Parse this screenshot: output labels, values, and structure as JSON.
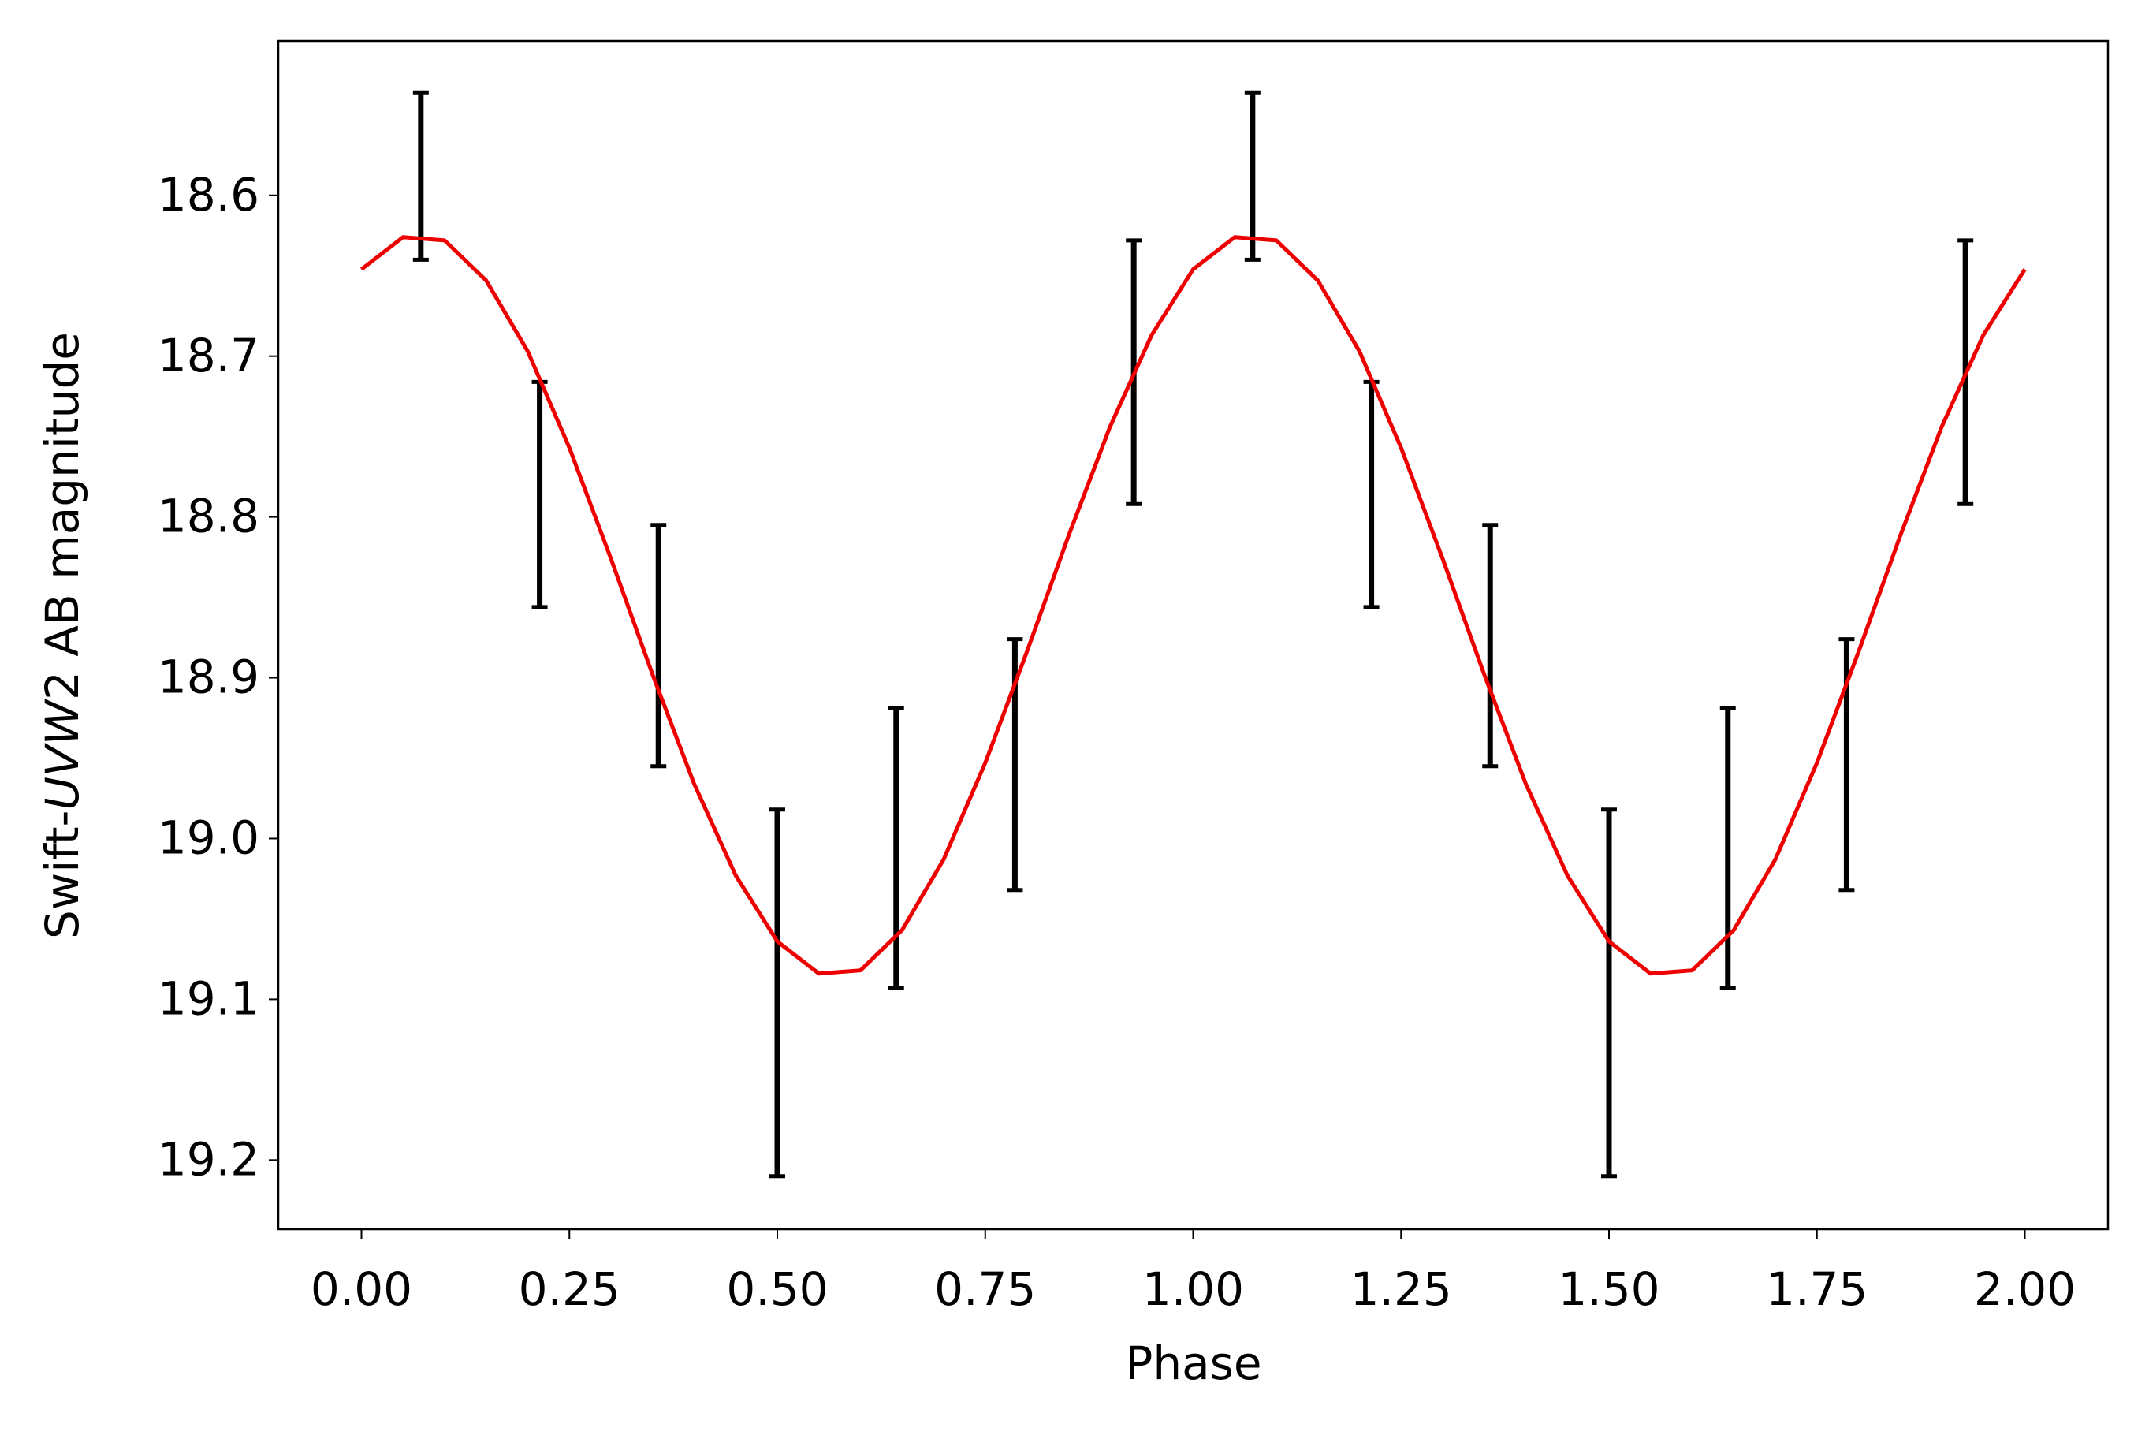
{
  "chart_data": {
    "type": "errorbar-line",
    "xlabel": "Phase",
    "ylabel": [
      "Swift-",
      "UVW",
      "2 AB magnitude"
    ],
    "xlim": [
      -0.1,
      2.1
    ],
    "ylim": [
      18.504,
      19.243
    ],
    "y_inverted": true,
    "xticks": [
      {
        "value": 0,
        "label": "0.00"
      },
      {
        "value": 0.25,
        "label": "0.25"
      },
      {
        "value": 0.5,
        "label": "0.50"
      },
      {
        "value": 0.75,
        "label": "0.75"
      },
      {
        "value": 1,
        "label": "1.00"
      },
      {
        "value": 1.25,
        "label": "1.25"
      },
      {
        "value": 1.5,
        "label": "1.50"
      },
      {
        "value": 1.75,
        "label": "1.75"
      },
      {
        "value": 2,
        "label": "2.00"
      }
    ],
    "yticks": [
      18.6,
      18.7,
      18.8,
      18.9,
      {
        "value": 19,
        "label": "19.0"
      },
      19.1,
      19.2
    ],
    "series": [
      {
        "kind": "errorbar",
        "color": "#000000",
        "x": [
          0.0714,
          0.2143,
          0.3571,
          0.5,
          0.6429,
          0.7857,
          0.9286,
          1.0714,
          1.2143,
          1.3571,
          1.5,
          1.6429,
          1.7857,
          1.9286
        ],
        "values": [
          18.588,
          18.786,
          18.88,
          19.096,
          19.006,
          18.954,
          18.71,
          18.588,
          18.786,
          18.88,
          19.096,
          19.006,
          18.954,
          18.71
        ],
        "errors": [
          0.052,
          0.07,
          0.075,
          0.114,
          0.087,
          0.078,
          0.082,
          0.052,
          0.07,
          0.075,
          0.114,
          0.087,
          0.078,
          0.082
        ]
      },
      {
        "kind": "line",
        "color": "#ee0000",
        "x": [
          0,
          0.05,
          0.1,
          0.15,
          0.2,
          0.25,
          0.3,
          0.35,
          0.4,
          0.45,
          0.5,
          0.55,
          0.6,
          0.65,
          0.7,
          0.75,
          0.8,
          0.85,
          0.9,
          0.95,
          1,
          1.05,
          1.1,
          1.15,
          1.2,
          1.25,
          1.3,
          1.35,
          1.4,
          1.45,
          1.5,
          1.55,
          1.6,
          1.65,
          1.7,
          1.75,
          1.8,
          1.85,
          1.9,
          1.95,
          2
        ],
        "values": [
          18.646,
          18.626,
          18.628,
          18.653,
          18.697,
          18.757,
          18.826,
          18.898,
          18.966,
          19.023,
          19.064,
          19.084,
          19.082,
          19.057,
          19.013,
          18.953,
          18.884,
          18.812,
          18.744,
          18.687,
          18.646,
          18.626,
          18.628,
          18.653,
          18.697,
          18.757,
          18.826,
          18.898,
          18.966,
          19.023,
          19.064,
          19.084,
          19.082,
          19.057,
          19.013,
          18.953,
          18.884,
          18.812,
          18.744,
          18.687,
          18.646
        ]
      }
    ]
  }
}
